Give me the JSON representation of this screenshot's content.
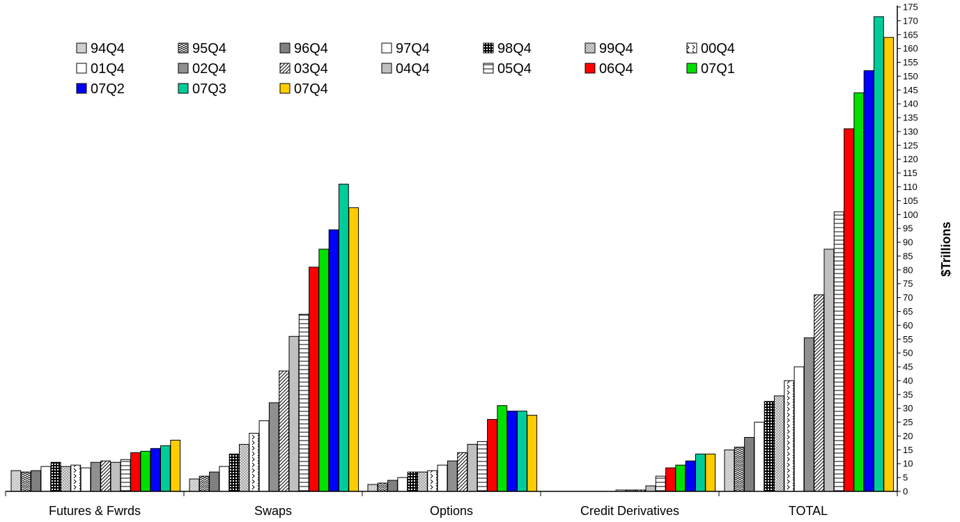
{
  "chart_data": {
    "type": "bar",
    "title": "",
    "xlabel": "",
    "ylabel": "$Trillions",
    "ylim": [
      0,
      175
    ],
    "ytick_step": 5,
    "y_axis_position": "right",
    "grid": false,
    "legend_position": "top-left",
    "categories": [
      "Futures & Fwrds",
      "Swaps",
      "Options",
      "Credit Derivatives",
      "TOTAL"
    ],
    "series": [
      {
        "name": "94Q4",
        "values": [
          7.5,
          4.5,
          2.5,
          0,
          15
        ],
        "fill": "#c8c8c8",
        "pattern": "dots"
      },
      {
        "name": "95Q4",
        "values": [
          7,
          5.5,
          3,
          0,
          16
        ],
        "fill": "#ffffff",
        "pattern": "zigzag"
      },
      {
        "name": "96Q4",
        "values": [
          7.5,
          7,
          4,
          0,
          19.5
        ],
        "fill": "#808080",
        "pattern": "solid"
      },
      {
        "name": "97Q4",
        "values": [
          9,
          9,
          5,
          0,
          25
        ],
        "fill": "#ffffff",
        "pattern": "solid"
      },
      {
        "name": "98Q4",
        "values": [
          10.5,
          13.5,
          7,
          0,
          32.5
        ],
        "fill": "#ffffff",
        "pattern": "grid"
      },
      {
        "name": "99Q4",
        "values": [
          9,
          17,
          7,
          0,
          34.5
        ],
        "fill": "#d0d0d0",
        "pattern": "checker"
      },
      {
        "name": "00Q4",
        "values": [
          9.5,
          21,
          7.5,
          0,
          40
        ],
        "fill": "#ffffff",
        "pattern": "chevron"
      },
      {
        "name": "01Q4",
        "values": [
          8.5,
          25.5,
          9.5,
          0.5,
          45
        ],
        "fill": "#ffffff",
        "pattern": "solid"
      },
      {
        "name": "02Q4",
        "values": [
          10.5,
          32,
          11,
          0.5,
          55.5
        ],
        "fill": "#909090",
        "pattern": "solid"
      },
      {
        "name": "03Q4",
        "values": [
          11,
          43.5,
          14,
          0.5,
          71
        ],
        "fill": "#ffffff",
        "pattern": "diagonal"
      },
      {
        "name": "04Q4",
        "values": [
          10.5,
          56,
          17,
          2,
          87.5
        ],
        "fill": "#c0c0c0",
        "pattern": "solid"
      },
      {
        "name": "05Q4",
        "values": [
          11.5,
          64,
          18,
          5.5,
          101
        ],
        "fill": "#ffffff",
        "pattern": "hlines"
      },
      {
        "name": "06Q4",
        "values": [
          14,
          81,
          26,
          8.5,
          131
        ],
        "fill": "#ff0000",
        "pattern": "solid"
      },
      {
        "name": "07Q1",
        "values": [
          14.5,
          87.5,
          31,
          9.5,
          144
        ],
        "fill": "#00e000",
        "pattern": "solid"
      },
      {
        "name": "07Q2",
        "values": [
          15.5,
          94.5,
          29,
          11,
          152
        ],
        "fill": "#0000ff",
        "pattern": "solid"
      },
      {
        "name": "07Q3",
        "values": [
          16.5,
          111,
          29,
          13.5,
          171.5
        ],
        "fill": "#00cc99",
        "pattern": "solid"
      },
      {
        "name": "07Q4",
        "values": [
          18.5,
          102.5,
          27.5,
          13.5,
          164
        ],
        "fill": "#ffcc00",
        "pattern": "solid"
      }
    ]
  }
}
